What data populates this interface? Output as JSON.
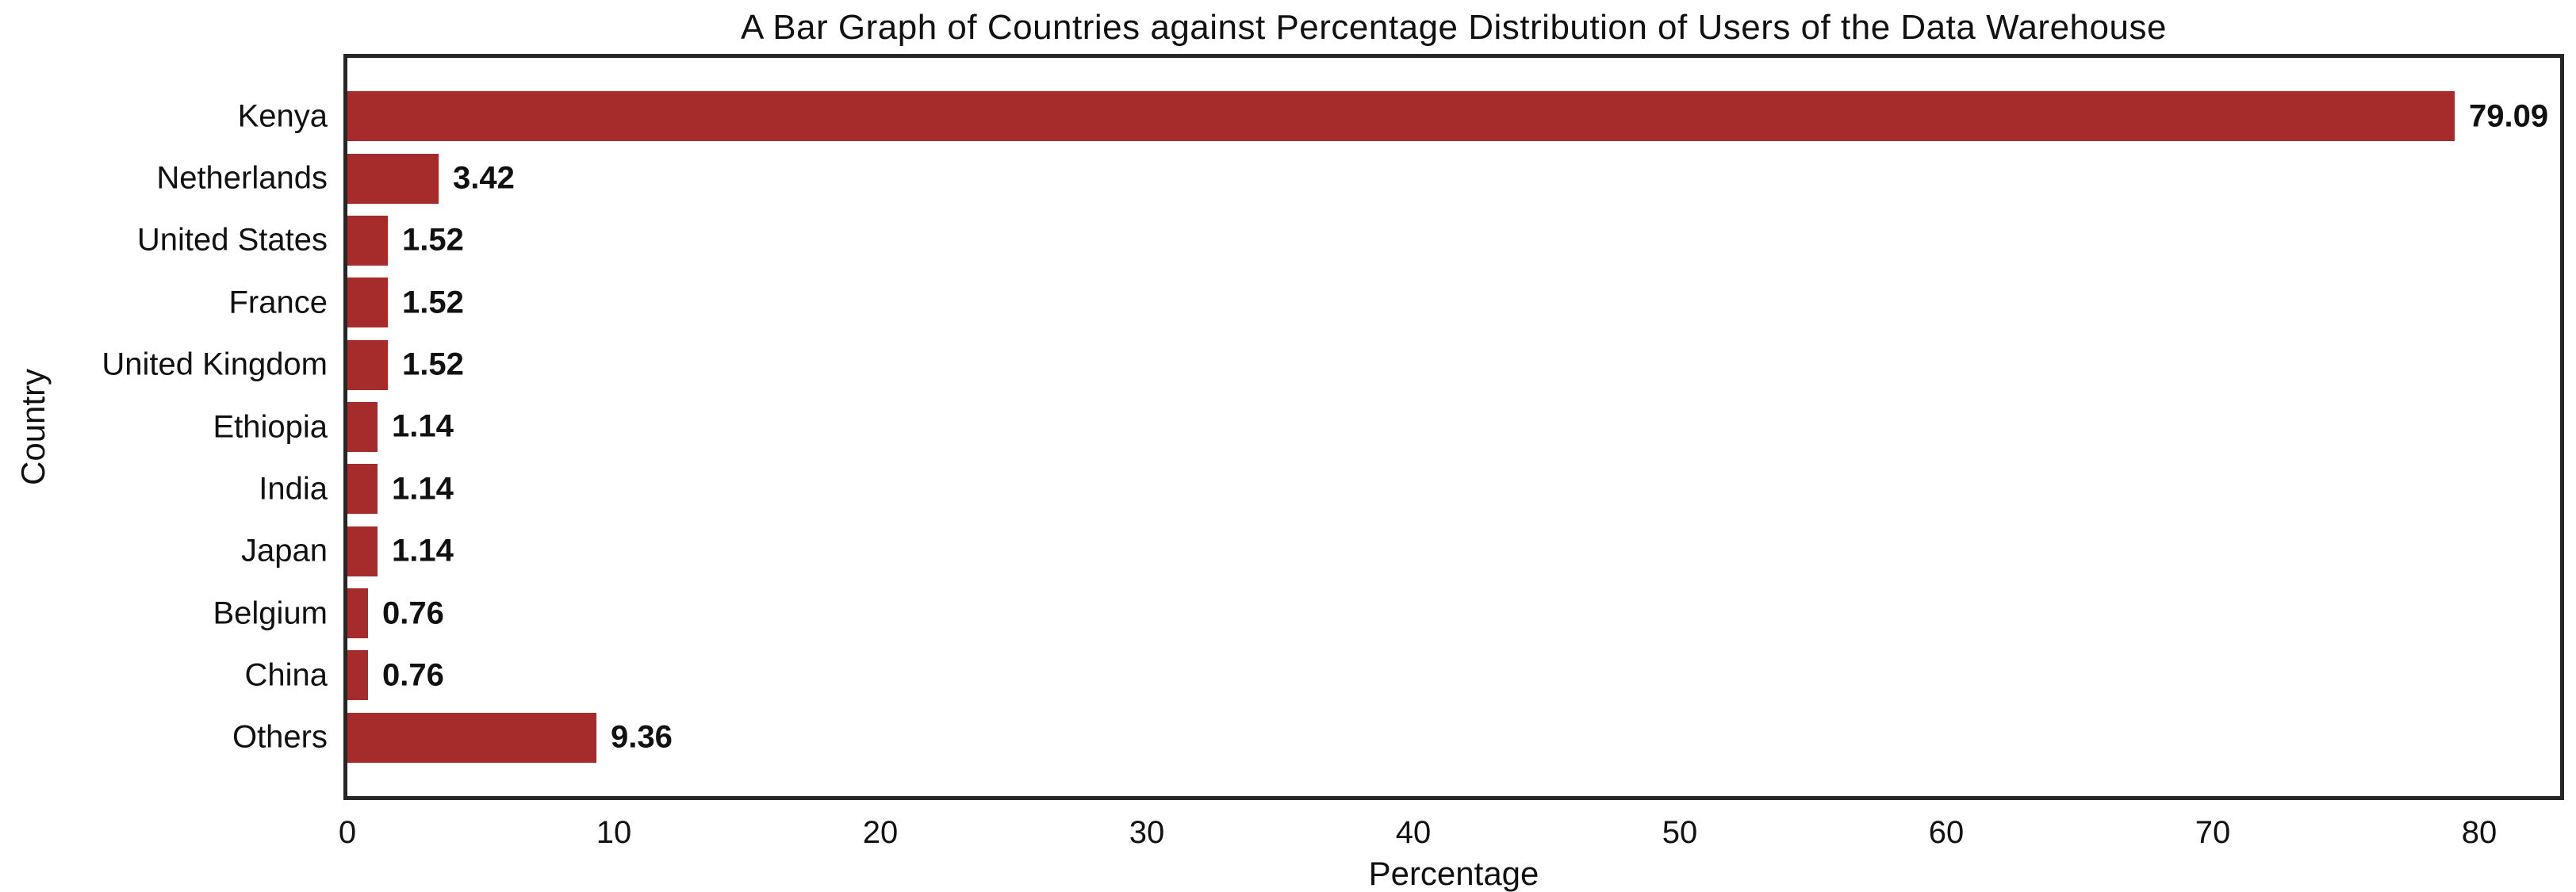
{
  "chart_data": {
    "type": "bar",
    "orientation": "horizontal",
    "title": "A Bar Graph of Countries against Percentage Distribution of Users of the Data Warehouse",
    "categories": [
      "Kenya",
      "Netherlands",
      "United States",
      "France",
      "United Kingdom",
      "Ethiopia",
      "India",
      "Japan",
      "Belgium",
      "China",
      "Others"
    ],
    "values": [
      79.09,
      3.42,
      1.52,
      1.52,
      1.52,
      1.14,
      1.14,
      1.14,
      0.76,
      0.76,
      9.36
    ],
    "value_labels": [
      "79.09",
      "3.42",
      "1.52",
      "1.52",
      "1.52",
      "1.14",
      "1.14",
      "1.14",
      "0.76",
      "0.76",
      "9.36"
    ],
    "xlabel": "Percentage",
    "ylabel": "Country",
    "x_ticks": [
      0,
      10,
      20,
      30,
      40,
      50,
      60,
      70,
      80
    ],
    "x_tick_labels": [
      "0",
      "10",
      "20",
      "30",
      "40",
      "50",
      "60",
      "70",
      "80"
    ],
    "xlim": [
      0,
      83.04
    ],
    "grid": false,
    "legend": null,
    "colors": {
      "bar": "#A62C2B",
      "spine": "#262626",
      "text": "#111111",
      "background": "#ffffff"
    }
  }
}
